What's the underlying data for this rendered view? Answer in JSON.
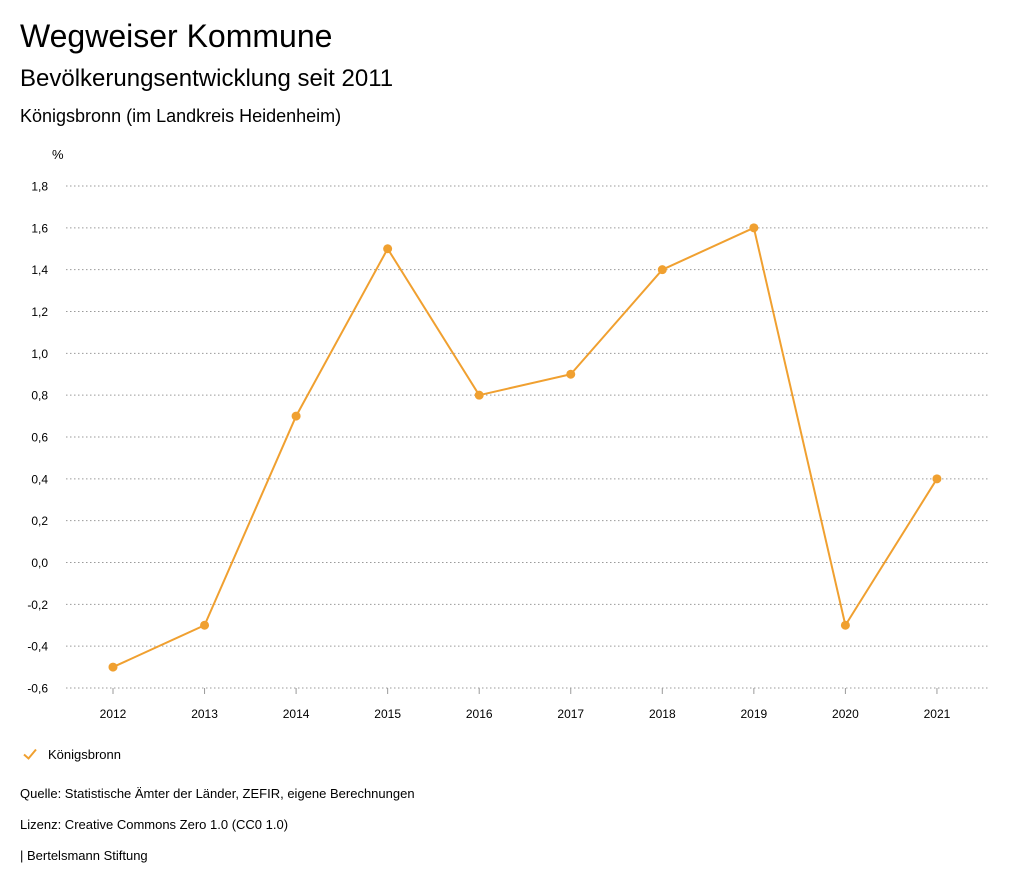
{
  "header": {
    "title": "Wegweiser Kommune",
    "subtitle": "Bevölkerungsentwicklung seit 2011",
    "region": "Königsbronn (im Landkreis Heidenheim)"
  },
  "chart_data": {
    "type": "line",
    "unit_label": "%",
    "categories": [
      "2012",
      "2013",
      "2014",
      "2015",
      "2016",
      "2017",
      "2018",
      "2019",
      "2020",
      "2021"
    ],
    "series": [
      {
        "name": "Königsbronn",
        "color": "#f0a030",
        "values": [
          -0.5,
          -0.3,
          0.7,
          1.5,
          0.8,
          0.9,
          1.4,
          1.6,
          -0.3,
          0.4
        ]
      }
    ],
    "y_ticks": [
      "1,8",
      "1,6",
      "1,4",
      "1,2",
      "1,0",
      "0,8",
      "0,6",
      "0,4",
      "0,2",
      "0,0",
      "-0,2",
      "-0,4",
      "-0,6"
    ],
    "ylim": [
      -0.6,
      1.8
    ],
    "grid": true,
    "legend_position": "bottom-left"
  },
  "footer": {
    "source": "Quelle: Statistische Ämter der Länder, ZEFIR, eigene Berechnungen",
    "license": "Lizenz: Creative Commons Zero 1.0 (CC0 1.0)",
    "publisher": "| Bertelsmann Stiftung"
  }
}
